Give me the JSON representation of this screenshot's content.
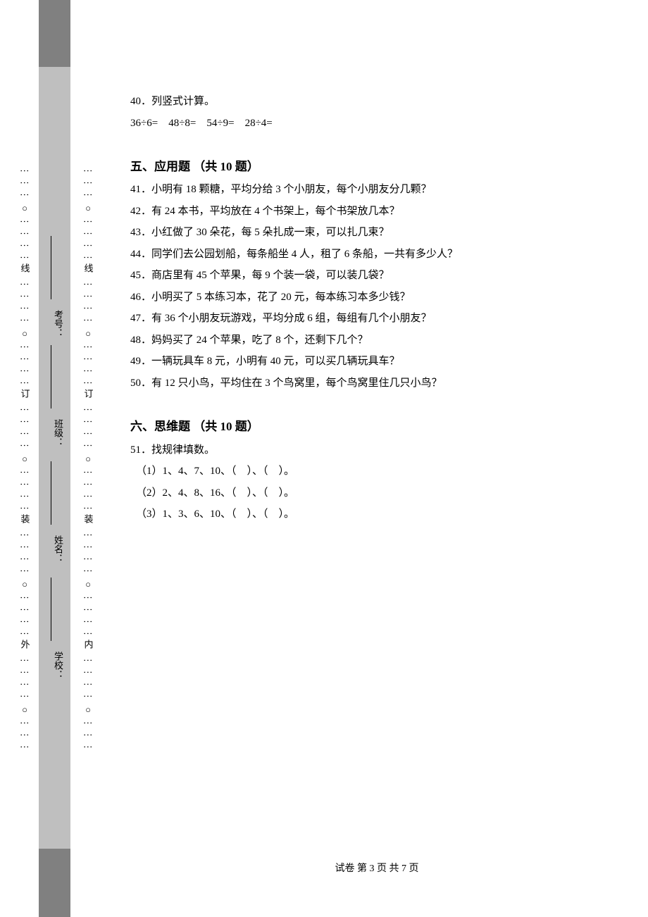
{
  "binding": {
    "outer_sequence": "外",
    "inner_sequence": "内",
    "markers": [
      "装",
      "订",
      "线"
    ],
    "school_label": "学校：",
    "name_label": "姓名：",
    "class_label": "班级：",
    "exam_label": "考号："
  },
  "questions": {
    "q40": {
      "title": "40．列竖式计算。",
      "items": "36÷6=　48÷8=　54÷9=　28÷4="
    },
    "section5": "五、应用题 （共 10 题）",
    "q41": "41．小明有 18 颗糖，平均分给 3 个小朋友，每个小朋友分几颗？",
    "q42": "42．有 24 本书，平均放在 4 个书架上，每个书架放几本？",
    "q43": "43．小红做了 30 朵花，每 5 朵扎成一束，可以扎几束？",
    "q44": "44．同学们去公园划船，每条船坐 4 人，租了 6 条船，一共有多少人？",
    "q45": "45．商店里有 45 个苹果，每 9 个装一袋，可以装几袋？",
    "q46": "46．小明买了 5 本练习本，花了 20 元，每本练习本多少钱？",
    "q47": "47．有 36 个小朋友玩游戏，平均分成 6 组，每组有几个小朋友？",
    "q48": "48．妈妈买了 24 个苹果，吃了 8 个，还剩下几个？",
    "q49": "49．一辆玩具车 8 元，小明有 40 元，可以买几辆玩具车？",
    "q50": "50．有 12 只小鸟，平均住在 3 个鸟窝里，每个鸟窝里住几只小鸟？",
    "section6": "六、思维题 （共 10 题）",
    "q51": {
      "title": "51．找规律填数。",
      "s1": "（1）1、4、7、10、（　）、（　）。",
      "s2": "（2）2、4、8、16、（　）、（　）。",
      "s3": "（3）1、3、6、10、（　）、（　）。"
    }
  },
  "footer": "试卷 第 3 页 共 7 页",
  "colors": {
    "text": "#000000",
    "background": "#ffffff",
    "gray_strip": "#bfbfbf",
    "gray_dark": "#808080"
  }
}
